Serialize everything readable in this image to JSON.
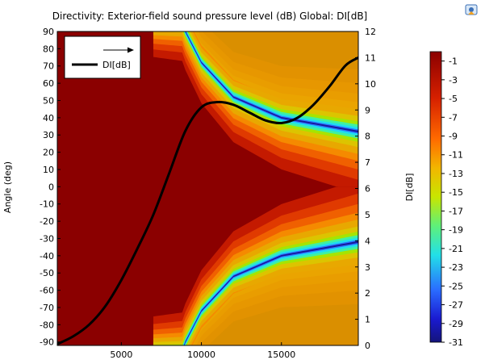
{
  "chart_data": {
    "type": "heatmap",
    "title": "Directivity: Exterior-field sound pressure level (dB)  Global: DI[dB]",
    "xlabel": "",
    "ylabel": "Angle (deg)",
    "y2label": "DI[dB]",
    "xlim": [
      1000,
      19800
    ],
    "ylim": [
      -92,
      90
    ],
    "y2lim": [
      0,
      12
    ],
    "x_ticks": [
      "5000",
      "10000",
      "15000"
    ],
    "y_ticks": [
      "90",
      "80",
      "70",
      "60",
      "50",
      "40",
      "30",
      "20",
      "10",
      "0",
      "-10",
      "-20",
      "-30",
      "-40",
      "-50",
      "-60",
      "-70",
      "-80",
      "-90"
    ],
    "y2_ticks": [
      "12",
      "11",
      "10",
      "9",
      "8",
      "7",
      "6",
      "5",
      "4",
      "3",
      "2",
      "1",
      "0"
    ],
    "colorbar": {
      "ticks": [
        "-1",
        "-3",
        "-5",
        "-7",
        "-9",
        "-11",
        "-13",
        "-15",
        "-17",
        "-19",
        "-21",
        "-23",
        "-25",
        "-27",
        "-29",
        "-31"
      ],
      "range": [
        -31,
        0
      ]
    },
    "heatmap_description_points": [
      {
        "x": 9000,
        "null_angle": 90
      },
      {
        "x": 10000,
        "null_angle": 72
      },
      {
        "x": 12000,
        "null_angle": 52
      },
      {
        "x": 15000,
        "null_angle": 40
      },
      {
        "x": 19800,
        "null_angle": 32
      }
    ],
    "series": [
      {
        "name": "DI[dB]",
        "color": "#000000",
        "x": [
          1000,
          2000,
          3000,
          4000,
          5000,
          6000,
          7000,
          8000,
          9000,
          10000,
          11000,
          12000,
          13000,
          14000,
          15000,
          16000,
          17000,
          18000,
          19000,
          19800
        ],
        "y": [
          0.05,
          0.35,
          0.8,
          1.5,
          2.5,
          3.7,
          5.0,
          6.6,
          8.2,
          9.1,
          9.3,
          9.2,
          8.9,
          8.6,
          8.5,
          8.7,
          9.2,
          9.9,
          10.7,
          11.0
        ]
      }
    ],
    "legend": {
      "position": "top-left",
      "entries": [
        "DI[dB]"
      ]
    },
    "grid": false
  },
  "colors": {
    "dark_red": "#8b0000",
    "line": "#000000"
  },
  "icons": {
    "toolbar": "image-export-icon"
  }
}
